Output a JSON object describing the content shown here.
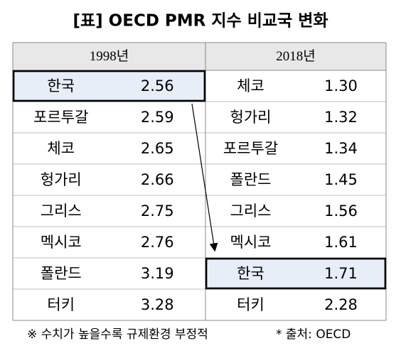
{
  "title": "[표] OECD PMR 지수 비교국 변화",
  "table": {
    "headers": [
      "1998년",
      "2018년"
    ],
    "columns": [
      {
        "rows": [
          [
            "한국",
            "2.56"
          ],
          [
            "포르투갈",
            "2.59"
          ],
          [
            "체코",
            "2.65"
          ],
          [
            "헝가리",
            "2.66"
          ],
          [
            "그리스",
            "2.75"
          ],
          [
            "멕시코",
            "2.76"
          ],
          [
            "폴란드",
            "3.19"
          ],
          [
            "터키",
            "3.28"
          ]
        ]
      },
      {
        "rows": [
          [
            "체코",
            "1.30"
          ],
          [
            "헝가리",
            "1.32"
          ],
          [
            "포르투갈",
            "1.34"
          ],
          [
            "폴란드",
            "1.45"
          ],
          [
            "그리스",
            "1.56"
          ],
          [
            "멕시코",
            "1.61"
          ],
          [
            "한국",
            "1.71"
          ],
          [
            "터키",
            "2.28"
          ]
        ]
      }
    ]
  },
  "footnotes": [
    "※ 수치가 높을수록 규제환경 부정적",
    "* 출처: OECD"
  ]
}
